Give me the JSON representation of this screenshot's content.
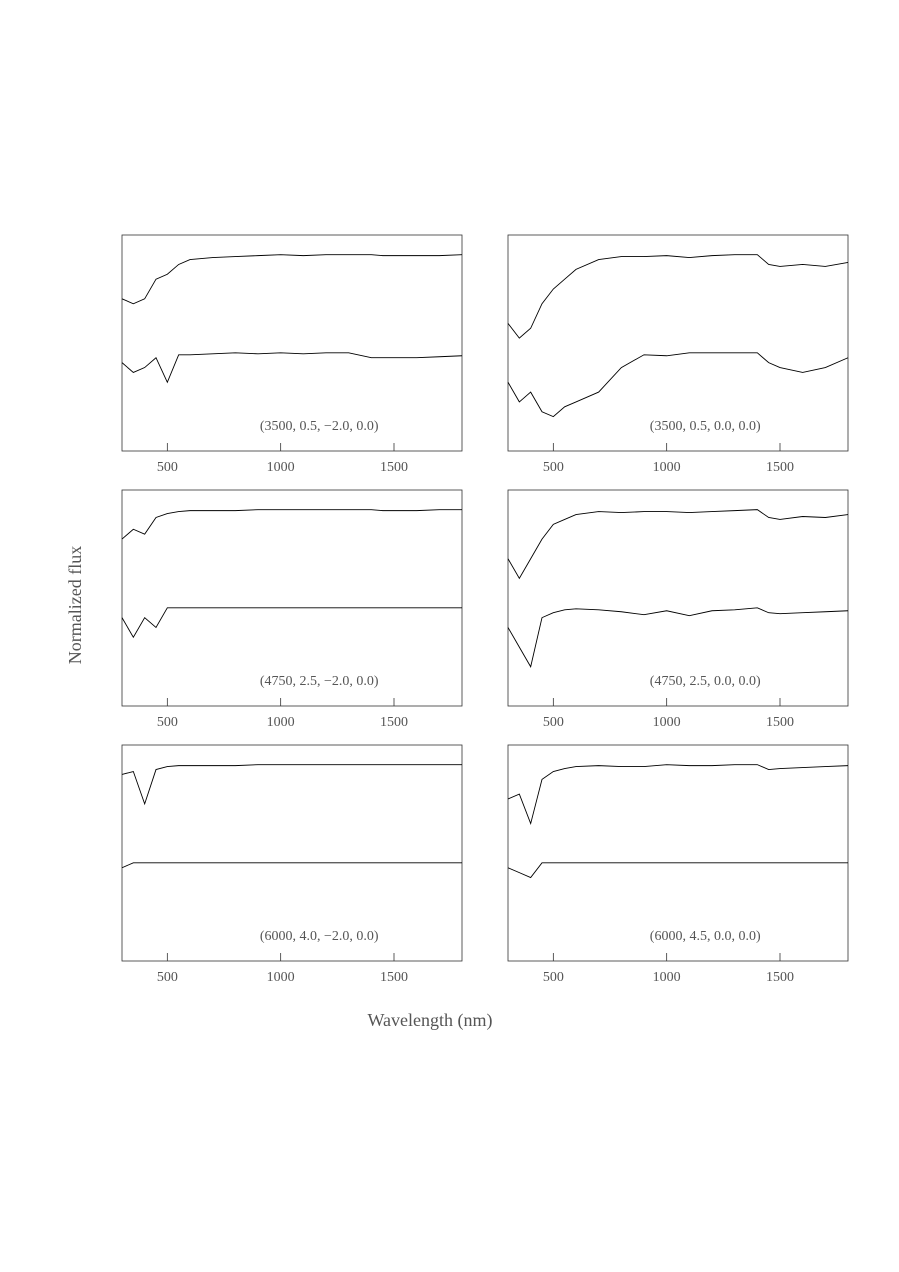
{
  "figure": {
    "xlabel": "Wavelength (nm)",
    "ylabel": "Normalized flux"
  },
  "chart_data": [
    {
      "type": "line",
      "annotation": "(3500, 0.5, −2.0, 0.0)",
      "x": [
        300,
        350,
        400,
        450,
        500,
        550,
        600,
        700,
        800,
        900,
        1000,
        1100,
        1200,
        1300,
        1400,
        1450,
        1500,
        1600,
        1700,
        1800
      ],
      "series": [
        {
          "color": "#000000",
          "values": [
            0.55,
            0.5,
            0.55,
            0.75,
            0.8,
            0.9,
            0.95,
            0.97,
            0.98,
            0.99,
            1.0,
            0.99,
            1.0,
            1.0,
            1.0,
            0.99,
            0.99,
            0.99,
            0.99,
            1.0
          ]
        },
        {
          "color": "#000000",
          "values": [
            -0.1,
            -0.2,
            -0.15,
            -0.05,
            -0.3,
            -0.02,
            -0.02,
            -0.01,
            0,
            -0.01,
            0,
            -0.01,
            0,
            0,
            -0.05,
            -0.05,
            -0.05,
            -0.05,
            -0.04,
            -0.03
          ]
        }
      ],
      "xlim": [
        300,
        1800
      ],
      "xticks": [
        500,
        1000,
        1500
      ],
      "ylim": [
        -1,
        1.2
      ]
    },
    {
      "type": "line",
      "annotation": "(3500, 0.5, 0.0, 0.0)",
      "x": [
        300,
        350,
        400,
        450,
        500,
        550,
        600,
        700,
        800,
        900,
        1000,
        1100,
        1200,
        1300,
        1400,
        1450,
        1500,
        1600,
        1700,
        1800
      ],
      "series": [
        {
          "color": "#000000",
          "values": [
            0.3,
            0.15,
            0.25,
            0.5,
            0.65,
            0.75,
            0.85,
            0.95,
            0.98,
            0.98,
            0.99,
            0.97,
            0.99,
            1.0,
            1.0,
            0.9,
            0.88,
            0.9,
            0.88,
            0.92
          ]
        },
        {
          "color": "#000000",
          "values": [
            -0.3,
            -0.5,
            -0.4,
            -0.6,
            -0.65,
            -0.55,
            -0.5,
            -0.4,
            -0.15,
            -0.02,
            -0.03,
            0,
            0,
            0,
            0,
            -0.1,
            -0.15,
            -0.2,
            -0.15,
            -0.05
          ]
        }
      ],
      "xlim": [
        300,
        1800
      ],
      "xticks": [
        500,
        1000,
        1500
      ],
      "ylim": [
        -1,
        1.2
      ]
    },
    {
      "type": "line",
      "annotation": "(4750, 2.5, −2.0, 0.0)",
      "x": [
        300,
        350,
        400,
        450,
        500,
        550,
        600,
        700,
        800,
        900,
        1000,
        1100,
        1200,
        1300,
        1400,
        1450,
        1500,
        1600,
        1700,
        1800
      ],
      "series": [
        {
          "color": "#000000",
          "values": [
            0.7,
            0.8,
            0.75,
            0.92,
            0.96,
            0.98,
            0.99,
            0.99,
            0.99,
            1,
            1,
            1,
            1,
            1,
            1,
            0.99,
            0.99,
            0.99,
            1,
            1
          ]
        },
        {
          "color": "#000000",
          "values": [
            -0.1,
            -0.3,
            -0.1,
            -0.2,
            0,
            0,
            0,
            0,
            0,
            0,
            0,
            0,
            0,
            0,
            0,
            0,
            0,
            0,
            0,
            0
          ]
        }
      ],
      "xlim": [
        300,
        1800
      ],
      "xticks": [
        500,
        1000,
        1500
      ],
      "ylim": [
        -1,
        1.2
      ]
    },
    {
      "type": "line",
      "annotation": "(4750, 2.5, 0.0, 0.0)",
      "x": [
        300,
        350,
        400,
        450,
        500,
        550,
        600,
        700,
        800,
        900,
        1000,
        1100,
        1200,
        1300,
        1400,
        1450,
        1500,
        1600,
        1700,
        1800
      ],
      "series": [
        {
          "color": "#000000",
          "values": [
            0.5,
            0.3,
            0.5,
            0.7,
            0.85,
            0.9,
            0.95,
            0.98,
            0.97,
            0.98,
            0.98,
            0.97,
            0.98,
            0.99,
            1,
            0.92,
            0.9,
            0.93,
            0.92,
            0.95
          ]
        },
        {
          "color": "#000000",
          "values": [
            -0.2,
            -0.4,
            -0.6,
            -0.1,
            -0.05,
            -0.02,
            -0.01,
            -0.02,
            -0.04,
            -0.07,
            -0.03,
            -0.08,
            -0.03,
            -0.02,
            0,
            -0.05,
            -0.06,
            -0.05,
            -0.04,
            -0.03
          ]
        }
      ],
      "xlim": [
        300,
        1800
      ],
      "xticks": [
        500,
        1000,
        1500
      ],
      "ylim": [
        -1,
        1.2
      ]
    },
    {
      "type": "line",
      "annotation": "(6000, 4.0, −2.0, 0.0)",
      "x": [
        300,
        350,
        400,
        450,
        500,
        550,
        600,
        700,
        800,
        900,
        1000,
        1100,
        1200,
        1300,
        1400,
        1450,
        1500,
        1600,
        1700,
        1800
      ],
      "series": [
        {
          "color": "#000000",
          "values": [
            0.9,
            0.93,
            0.6,
            0.95,
            0.98,
            0.99,
            0.99,
            0.99,
            0.99,
            1,
            1,
            1,
            1,
            1,
            1,
            1,
            1,
            1,
            1,
            1
          ]
        },
        {
          "color": "#000000",
          "values": [
            -0.05,
            0,
            0,
            0,
            0,
            0,
            0,
            0,
            0,
            0,
            0,
            0,
            0,
            0,
            0,
            0,
            0,
            0,
            0,
            0
          ]
        }
      ],
      "xlim": [
        300,
        1800
      ],
      "xticks": [
        500,
        1000,
        1500
      ],
      "ylim": [
        -1,
        1.2
      ]
    },
    {
      "type": "line",
      "annotation": "(6000, 4.5, 0.0, 0.0)",
      "x": [
        300,
        350,
        400,
        450,
        500,
        550,
        600,
        700,
        800,
        900,
        1000,
        1100,
        1200,
        1300,
        1400,
        1450,
        1500,
        1600,
        1700,
        1800
      ],
      "series": [
        {
          "color": "#000000",
          "values": [
            0.65,
            0.7,
            0.4,
            0.85,
            0.93,
            0.96,
            0.98,
            0.99,
            0.98,
            0.98,
            1,
            0.99,
            0.99,
            1,
            1,
            0.95,
            0.96,
            0.97,
            0.98,
            0.99
          ]
        },
        {
          "color": "#000000",
          "values": [
            -0.05,
            -0.1,
            -0.15,
            0,
            0,
            0,
            0,
            0,
            0,
            0,
            0,
            0,
            0,
            0,
            0,
            0,
            0,
            0,
            0,
            0
          ]
        }
      ],
      "xlim": [
        300,
        1800
      ],
      "xticks": [
        500,
        1000,
        1500
      ],
      "ylim": [
        -1,
        1.2
      ]
    }
  ]
}
